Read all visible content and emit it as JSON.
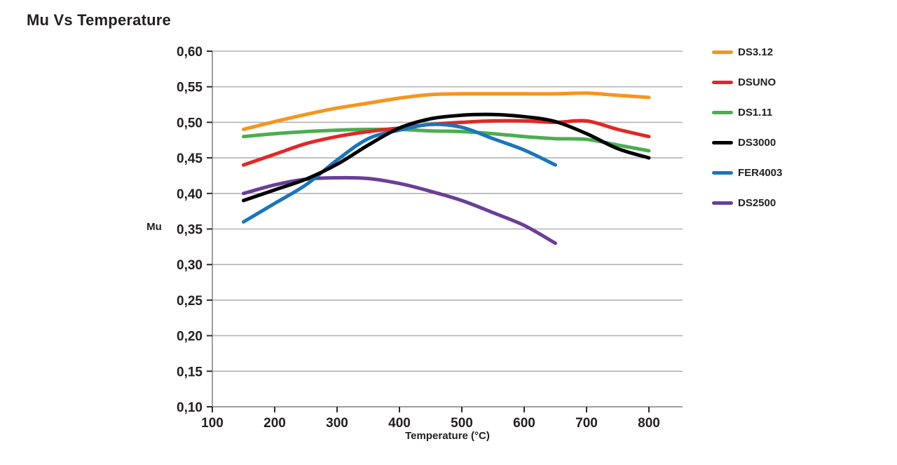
{
  "page_title": "Mu Vs Temperature",
  "axes": {
    "x_title": "Temperature (°C)",
    "y_title": "Mu",
    "y_tick_labels": [
      "0,60",
      "0,55",
      "0,50",
      "0,45",
      "0,40",
      "0,35",
      "0,30",
      "0,25",
      "0,20",
      "0,15",
      "0,10"
    ],
    "x_tick_labels": [
      "100",
      "200",
      "300",
      "400",
      "500",
      "600",
      "700",
      "800"
    ]
  },
  "colors": {
    "text": "#231f20",
    "gridline": "#b3b3b3",
    "axis_line": "#9e9e9e",
    "tick_mark": "#2b2b2b"
  },
  "chart_data": {
    "type": "line",
    "title": "Mu Vs Temperature",
    "xlabel": "Temperature (°C)",
    "ylabel": "Mu",
    "xlim": [
      100,
      855
    ],
    "ylim": [
      0.1,
      0.6
    ],
    "x_ticks": [
      100,
      200,
      300,
      400,
      500,
      600,
      700,
      800
    ],
    "y_ticks": [
      0.1,
      0.15,
      0.2,
      0.25,
      0.3,
      0.35,
      0.4,
      0.45,
      0.5,
      0.55,
      0.6
    ],
    "decimal_separator": ",",
    "grid": "horizontal",
    "legend_position": "right",
    "line_width": 5,
    "smooth": true,
    "draw_order": [
      0,
      2,
      1,
      5,
      4,
      3
    ],
    "series": [
      {
        "name": "DS3.12",
        "color": "#f7941e",
        "x": [
          150,
          200,
          250,
          300,
          350,
          400,
          450,
          500,
          550,
          600,
          650,
          700,
          750,
          800
        ],
        "y": [
          0.49,
          0.501,
          0.511,
          0.52,
          0.527,
          0.534,
          0.539,
          0.54,
          0.54,
          0.54,
          0.54,
          0.541,
          0.538,
          0.535
        ]
      },
      {
        "name": "DSUNO",
        "color": "#e32726",
        "x": [
          150,
          200,
          250,
          300,
          350,
          400,
          450,
          500,
          550,
          600,
          650,
          700,
          750,
          800
        ],
        "y": [
          0.44,
          0.455,
          0.47,
          0.48,
          0.487,
          0.492,
          0.497,
          0.5,
          0.502,
          0.502,
          0.5,
          0.502,
          0.49,
          0.48
        ]
      },
      {
        "name": "DS1.11",
        "color": "#4bae4f",
        "x": [
          150,
          200,
          250,
          300,
          350,
          400,
          450,
          500,
          550,
          600,
          650,
          700,
          750,
          800
        ],
        "y": [
          0.48,
          0.484,
          0.487,
          0.489,
          0.49,
          0.49,
          0.488,
          0.487,
          0.484,
          0.48,
          0.477,
          0.476,
          0.468,
          0.46
        ]
      },
      {
        "name": "DS3000",
        "color": "#000000",
        "x": [
          150,
          200,
          250,
          300,
          350,
          400,
          450,
          500,
          550,
          600,
          650,
          700,
          750,
          800
        ],
        "y": [
          0.39,
          0.405,
          0.42,
          0.441,
          0.468,
          0.492,
          0.505,
          0.51,
          0.511,
          0.508,
          0.501,
          0.484,
          0.463,
          0.45
        ]
      },
      {
        "name": "FER4003",
        "color": "#1b75bc",
        "x": [
          150,
          200,
          250,
          300,
          350,
          400,
          450,
          500,
          550,
          600,
          650
        ],
        "y": [
          0.36,
          0.386,
          0.412,
          0.447,
          0.477,
          0.489,
          0.497,
          0.493,
          0.477,
          0.461,
          0.44
        ]
      },
      {
        "name": "DS2500",
        "color": "#6b3e98",
        "x": [
          150,
          200,
          250,
          300,
          350,
          400,
          450,
          500,
          550,
          600,
          650
        ],
        "y": [
          0.4,
          0.412,
          0.42,
          0.422,
          0.421,
          0.414,
          0.403,
          0.39,
          0.373,
          0.355,
          0.33
        ]
      }
    ]
  }
}
